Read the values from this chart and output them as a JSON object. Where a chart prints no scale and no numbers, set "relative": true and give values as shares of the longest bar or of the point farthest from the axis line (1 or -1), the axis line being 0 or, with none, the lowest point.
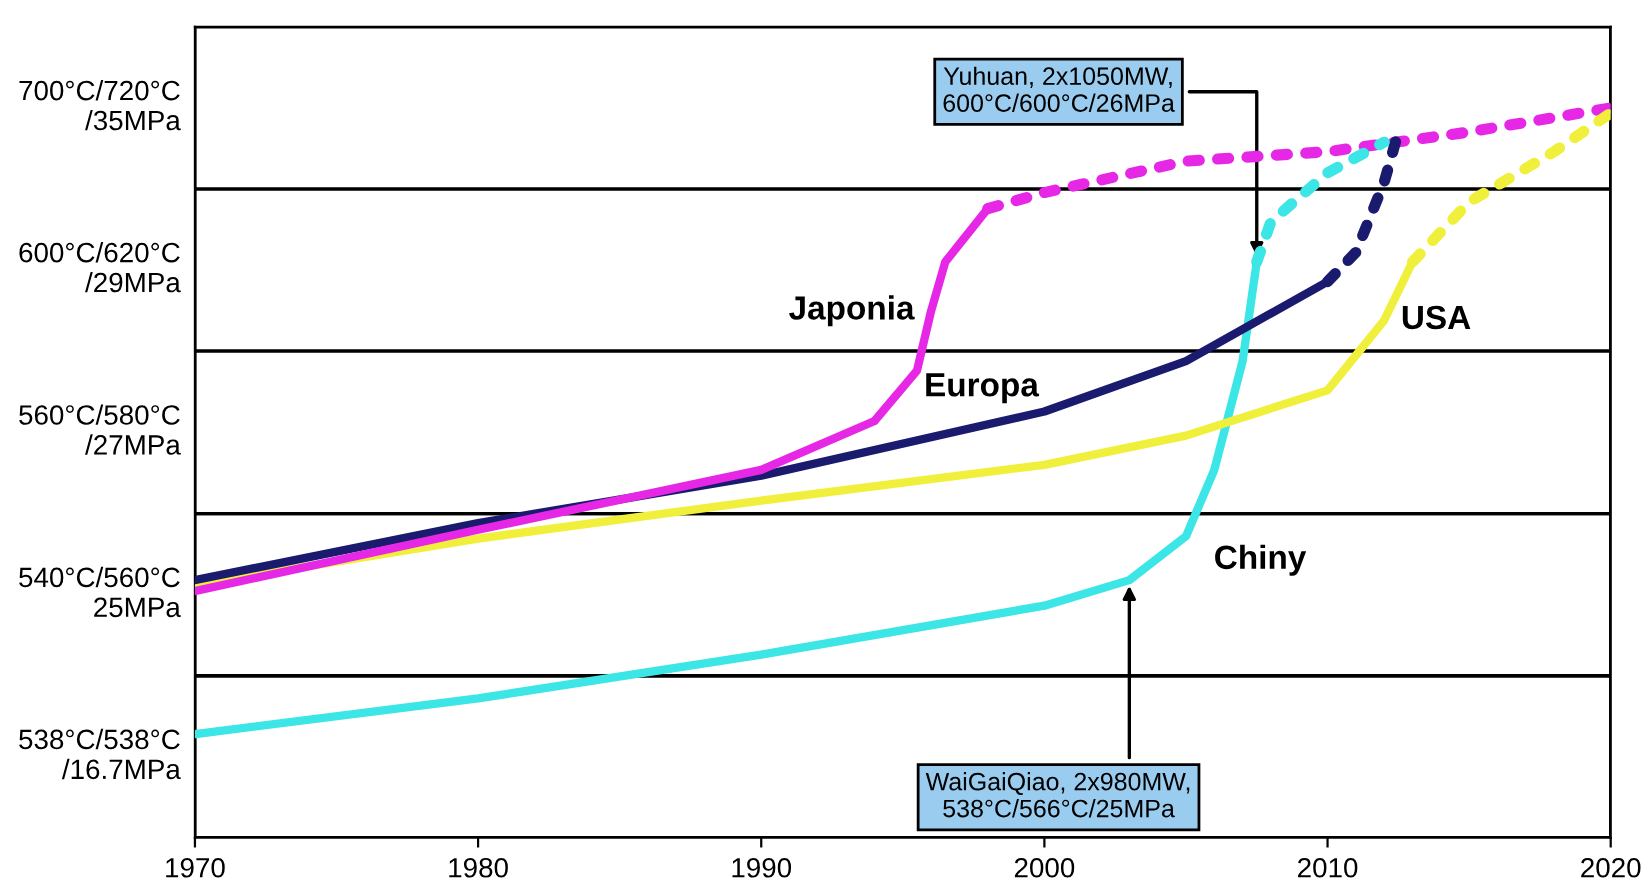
{
  "chart_data": {
    "type": "line",
    "relative": true,
    "xlim": [
      1970,
      2020
    ],
    "xticks": [
      1970,
      1980,
      1990,
      2000,
      2010,
      2020
    ],
    "grid": false,
    "legend": false,
    "bands": [
      {
        "axis": "y",
        "from": 0,
        "to": 0.222,
        "label": "538°C/538°C\n/16.7MPa",
        "color": "#ffffff"
      },
      {
        "axis": "y",
        "from": 0.222,
        "to": 0.444,
        "label": "540°C/560°C\n25MPa",
        "color": "#ffffff"
      },
      {
        "axis": "y",
        "from": 0.444,
        "to": 0.667,
        "label": "560°C/580°C\n/27MPa",
        "color": "#ffffff"
      },
      {
        "axis": "y",
        "from": 0.667,
        "to": 0.889,
        "label": "600°C/620°C\n/29MPa",
        "color": "#ffffff"
      },
      {
        "axis": "y",
        "from": 0.889,
        "to": 1.111,
        "label": "700°C/720°C\n/35MPa",
        "color": "#ffffff"
      }
    ],
    "series": [
      {
        "name": "Japonia",
        "color": "#e628e6",
        "line_style": "solid",
        "x": [
          1970,
          1980,
          1990,
          1994,
          1995.5,
          1996,
          1996.5,
          1998
        ],
        "values": [
          0.338,
          0.422,
          0.504,
          0.571,
          0.64,
          0.722,
          0.789,
          0.862
        ]
      },
      {
        "color": "#e628e6",
        "line_style": "dotted",
        "x": [
          1998,
          2000,
          2005,
          2010,
          2015,
          2020
        ],
        "values": [
          0.862,
          0.884,
          0.927,
          0.94,
          0.967,
          1
        ]
      },
      {
        "name": "Europa",
        "color": "#1a1a6e",
        "line_style": "solid",
        "x": [
          1970,
          1980,
          1990,
          2000,
          2005,
          2010
        ],
        "values": [
          0.353,
          0.431,
          0.496,
          0.584,
          0.653,
          0.762
        ]
      },
      {
        "color": "#1a1a6e",
        "line_style": "dotted",
        "x": [
          2010,
          2011,
          2012,
          2012.5
        ],
        "values": [
          0.762,
          0.802,
          0.898,
          0.967
        ]
      },
      {
        "name": "USA",
        "color": "#f0f03c",
        "line_style": "solid",
        "x": [
          1970,
          1980,
          1990,
          2000,
          2005,
          2010,
          2012,
          2013
        ],
        "values": [
          0.347,
          0.41,
          0.462,
          0.511,
          0.551,
          0.613,
          0.709,
          0.789
        ]
      },
      {
        "color": "#f0f03c",
        "line_style": "dotted",
        "x": [
          2013,
          2015,
          2018,
          2020
        ],
        "values": [
          0.789,
          0.871,
          0.94,
          0.993
        ]
      },
      {
        "name": "Chiny",
        "color": "#3ce6e6",
        "line_style": "solid",
        "x": [
          1970,
          1980,
          1990,
          2000,
          2003,
          2005,
          2006,
          2007,
          2007.5
        ],
        "values": [
          0.142,
          0.191,
          0.251,
          0.318,
          0.353,
          0.413,
          0.504,
          0.653,
          0.789
        ]
      },
      {
        "color": "#3ce6e6",
        "line_style": "dotted",
        "x": [
          2007.5,
          2008,
          2010,
          2012
        ],
        "values": [
          0.789,
          0.844,
          0.911,
          0.953
        ]
      }
    ],
    "annotations": [
      {
        "text": "Yuhuan, 2x1050MW,\n600°C/600°C/26MPa",
        "x": 2007.5,
        "y": 0.789
      },
      {
        "text": "WaiGaiQiao, 2x980MW,\n538°C/566°C/25MPa",
        "x": 2003,
        "y": 0.353
      }
    ]
  }
}
